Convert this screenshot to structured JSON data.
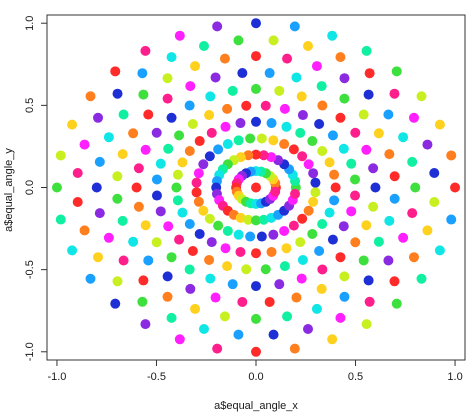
{
  "chart_data": {
    "type": "scatter",
    "title": "",
    "xlabel": "a$equal_angle_x",
    "ylabel": "a$equal_angle_y",
    "xlim": [
      -1.05,
      1.05
    ],
    "ylim": [
      -1.05,
      1.05
    ],
    "xticks": [
      -1.0,
      -0.5,
      0.0,
      0.5,
      1.0
    ],
    "xtick_labels": [
      "-1.0",
      "-0.5",
      "0.0",
      "0.5",
      "1.0"
    ],
    "yticks": [
      -1.0,
      -0.5,
      0.0,
      0.5,
      1.0
    ],
    "ytick_labels": [
      "-1.0",
      "-0.5",
      "0.0",
      "0.5",
      "1.0"
    ],
    "grid": false,
    "rings": [
      {
        "radius": 1.0,
        "count": 32,
        "start_angle_deg": 0
      },
      {
        "radius": 0.9,
        "count": 32,
        "start_angle_deg": 5.625
      },
      {
        "radius": 0.8,
        "count": 32,
        "start_angle_deg": 0
      },
      {
        "radius": 0.7,
        "count": 32,
        "start_angle_deg": 5.625
      },
      {
        "radius": 0.6,
        "count": 32,
        "start_angle_deg": 0
      },
      {
        "radius": 0.5,
        "count": 32,
        "start_angle_deg": 5.625
      },
      {
        "radius": 0.4,
        "count": 32,
        "start_angle_deg": 0
      },
      {
        "radius": 0.3,
        "count": 32,
        "start_angle_deg": 5.625
      },
      {
        "radius": 0.2,
        "count": 32,
        "start_angle_deg": 0
      },
      {
        "radius": 0.1,
        "count": 24,
        "start_angle_deg": 0
      }
    ],
    "center_point": [
      0.0,
      0.0
    ],
    "colors": [
      "#ff2a2a",
      "#ff7f1f",
      "#ffd11f",
      "#c8f020",
      "#3de03d",
      "#10f0a0",
      "#10e6e6",
      "#1aa0ff",
      "#1f2fd6",
      "#8a2be2",
      "#ff1fff",
      "#ff1f8c"
    ]
  }
}
